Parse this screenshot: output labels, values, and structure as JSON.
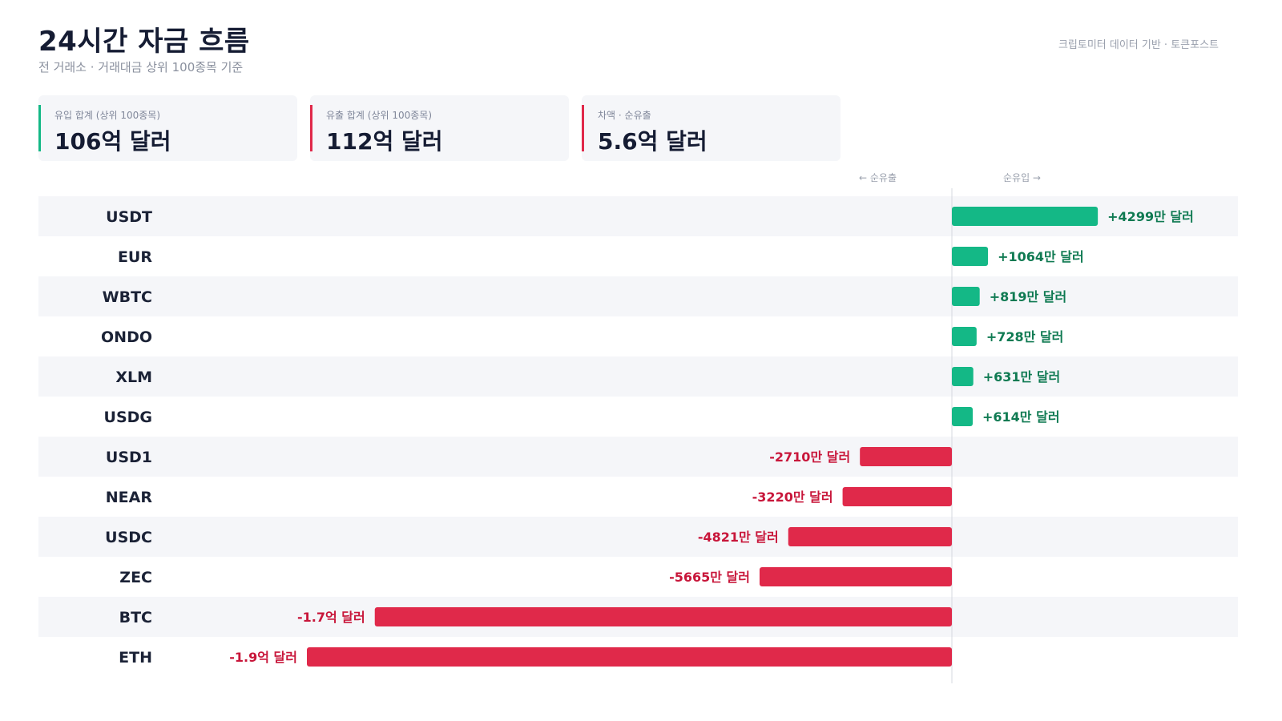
{
  "header": {
    "title": "24시간 자금 흐름",
    "subtitle": "전 거래소 · 거래대금 상위 100종목 기준",
    "source": "크립토미터 데이터 기반 · 토큰포스트"
  },
  "cards": [
    {
      "label": "유입 합계 (상위 100종목)",
      "value": "106억 달러",
      "accent": "#14b886"
    },
    {
      "label": "유출 합계 (상위 100종목)",
      "value": "112억 달러",
      "accent": "#e0294a"
    },
    {
      "label": "차액 · 순유출",
      "value": "5.6억 달러",
      "accent": "#e0294a"
    }
  ],
  "directions": {
    "outflow": "← 순유출",
    "inflow": "순유입 →"
  },
  "colors": {
    "inflow": "#14b886",
    "outflow": "#e0294a",
    "inflow_text": "#0f7a52",
    "outflow_text": "#c8163a",
    "row_alt": "#f5f6f9"
  },
  "chart_data": {
    "type": "bar",
    "orientation": "horizontal-diverging",
    "unit": "USD",
    "categories": [
      "USDT",
      "EUR",
      "WBTC",
      "ONDO",
      "XLM",
      "USDG",
      "USD1",
      "NEAR",
      "USDC",
      "ZEC",
      "BTC",
      "ETH"
    ],
    "values": [
      42990000,
      10640000,
      8190000,
      7280000,
      6310000,
      6140000,
      -27100000,
      -32200000,
      -48210000,
      -56650000,
      -170000000,
      -190000000
    ],
    "value_labels": [
      "+4299만 달러",
      "+1064만 달러",
      "+819만 달러",
      "+728만 달러",
      "+631만 달러",
      "+614만 달러",
      "-2710만 달러",
      "-3220만 달러",
      "-4821만 달러",
      "-5665만 달러",
      "-1.7억 달러",
      "-1.9억 달러"
    ],
    "xlim": [
      -270000000,
      150000000
    ],
    "grid": false,
    "legend": "none"
  }
}
